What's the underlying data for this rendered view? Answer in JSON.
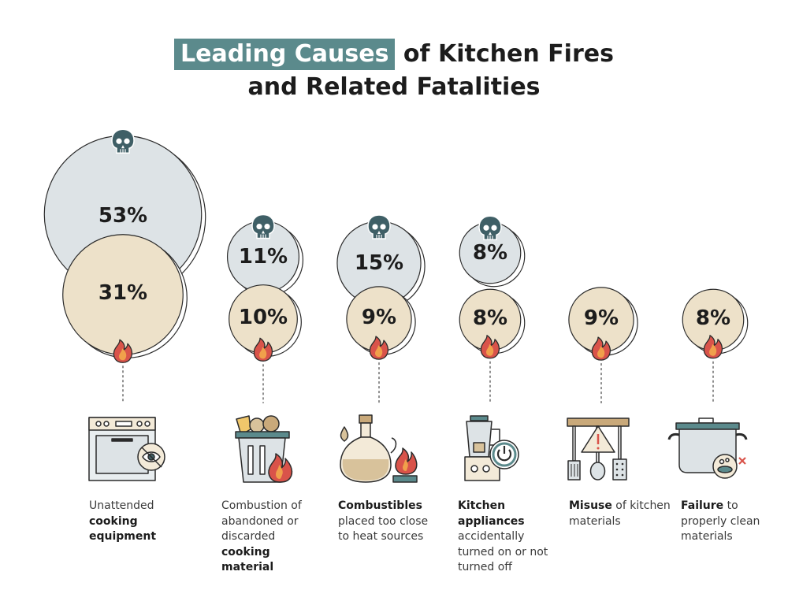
{
  "title": {
    "highlight": "Leading Causes",
    "line1_rest": " of Kitchen Fires",
    "line2": "and Related Fatalities"
  },
  "colors": {
    "fatality_fill": "#dde3e6",
    "fire_fill": "#ede1c9",
    "outline": "#2b2b2b",
    "accent_teal": "#5b8a8c",
    "skull": "#3f5f66",
    "flame_red": "#d9534a",
    "flame_orange": "#f0a04b"
  },
  "chart_data": {
    "type": "bubble",
    "categories": [
      "Unattended cooking equipment",
      "Combustion of abandoned or discarded cooking material",
      "Combustibles placed too close to heat sources",
      "Kitchen appliances accidentally turned on or not turned off",
      "Misuse of kitchen materials",
      "Failure to properly clean materials"
    ],
    "series": [
      {
        "name": "",
        "icon": "skull-icon",
        "values": [
          53,
          11,
          15,
          8,
          null,
          null
        ]
      },
      {
        "name": "",
        "icon": "flame-icon",
        "values": [
          31,
          10,
          9,
          8,
          9,
          8
        ]
      }
    ],
    "value_labels": {
      "fatalities": [
        "53%",
        "11%",
        "15%",
        "8%",
        "",
        ""
      ],
      "fires": [
        "31%",
        "10%",
        "9%",
        "8%",
        "9%",
        "8%"
      ]
    }
  },
  "captions": [
    {
      "pre": "Unattended ",
      "bold": "cooking equipment",
      "post": "",
      "icon": "oven-icon"
    },
    {
      "pre": "Combustion of abandoned or discarded ",
      "bold": "cooking material",
      "post": "",
      "icon": "trash-bin-icon"
    },
    {
      "pre": "",
      "bold": "Combustibles",
      "post": " placed too close to heat sources",
      "icon": "oil-bottle-icon"
    },
    {
      "pre": "",
      "bold": "Kitchen appliances",
      "post": " accidentally turned on or not turned off",
      "icon": "blender-icon"
    },
    {
      "pre": "",
      "bold": "Misuse",
      "post": " of kitchen materials",
      "icon": "kitchen-utensils-icon"
    },
    {
      "pre": "",
      "bold": "Failure",
      "post": " to properly clean materials",
      "icon": "cooking-pot-icon"
    }
  ]
}
